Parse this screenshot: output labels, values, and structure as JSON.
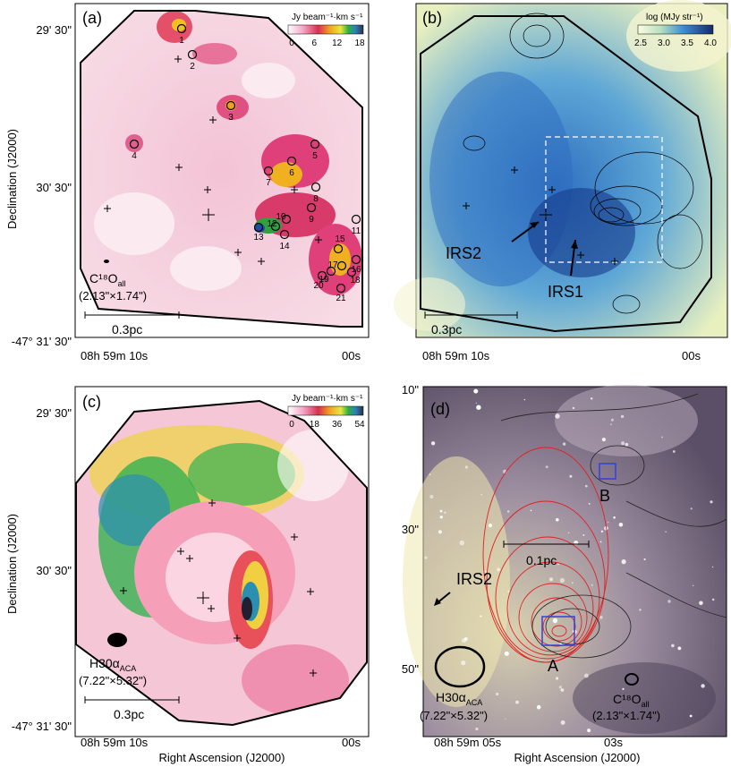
{
  "panels": {
    "a": {
      "label": "(a)",
      "colorbar": {
        "title": "Jy beam⁻¹·km s⁻¹",
        "ticks": [
          "0",
          "6",
          "12",
          "18"
        ]
      },
      "beam": {
        "line1": "C¹⁸O",
        "line1_sub": "all",
        "line2": "(2.13\"×1.74\")"
      },
      "scalebar": "0.3pc",
      "sources": [
        "1",
        "2",
        "3",
        "4",
        "5",
        "6",
        "7",
        "8",
        "9",
        "10",
        "11",
        "12",
        "13",
        "14",
        "15",
        "16",
        "17",
        "18",
        "19",
        "20",
        "21"
      ]
    },
    "b": {
      "label": "(b)",
      "colorbar": {
        "title": "log (MJy str⁻¹)",
        "ticks": [
          "2.5",
          "3.0",
          "3.5",
          "4.0"
        ]
      },
      "scalebar": "0.3pc",
      "arrows": [
        "IRS2",
        "IRS1"
      ]
    },
    "c": {
      "label": "(c)",
      "colorbar": {
        "title": "Jy beam⁻¹·km s⁻¹",
        "ticks": [
          "0",
          "18",
          "36",
          "54"
        ]
      },
      "beam": {
        "line1": "H30α",
        "line1_sub": "ACA",
        "line2": "(7.22\"×5.32\")"
      },
      "scalebar": "0.3pc"
    },
    "d": {
      "label": "(d)",
      "scalebar": "0.1pc",
      "labels": {
        "irs2": "IRS2",
        "a": "A",
        "b": "B"
      },
      "beam_left": {
        "line1": "H30α",
        "line1_sub": "ACA",
        "line2": "(7.22\"×5.32\")"
      },
      "beam_right": {
        "line1": "C¹⁸O",
        "line1_sub": "all",
        "line2": "(2.13\"×1.74\")"
      }
    }
  },
  "axes": {
    "ylabel": "Declination (J2000)",
    "xlabel": "Right Ascension (J2000)",
    "dec_ticks_top": [
      "29' 30\"",
      "30' 30\"",
      "-47° 31' 30\""
    ],
    "ra_ticks": [
      "08h 59m 10s",
      "00s"
    ],
    "d_dec_ticks": [
      "10\"",
      "30\"",
      "50\""
    ],
    "d_ra_ticks": [
      "08h 59m 05s",
      "03s"
    ]
  }
}
